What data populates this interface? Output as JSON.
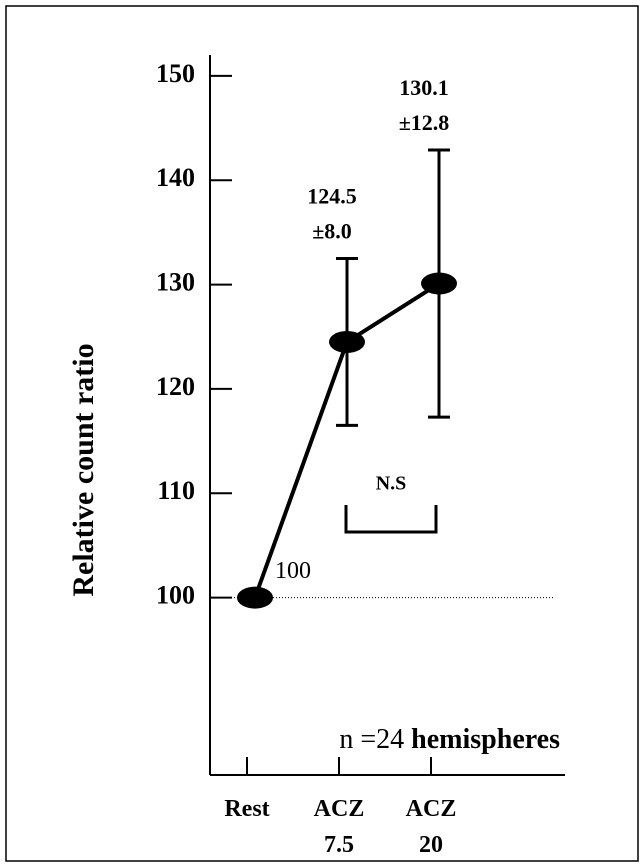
{
  "chart_data": {
    "type": "line",
    "y_label": "Relative count ratio",
    "categories": [
      "Rest",
      "ACZ 7.5",
      "ACZ 20"
    ],
    "values": [
      100,
      124.5,
      130.1
    ],
    "value_labels": [
      "100",
      "124.5",
      "130.1"
    ],
    "errors": [
      null,
      8.0,
      12.8
    ],
    "error_labels": [
      null,
      "±8.0",
      "±12.8"
    ],
    "color": "#000000",
    "ylim": [
      83,
      152
    ],
    "yticks": [
      100,
      110,
      120,
      130,
      140,
      150
    ],
    "reference_line": 100,
    "bracket_label": "N.S",
    "note": [
      "n =24",
      "hemispheres"
    ]
  }
}
